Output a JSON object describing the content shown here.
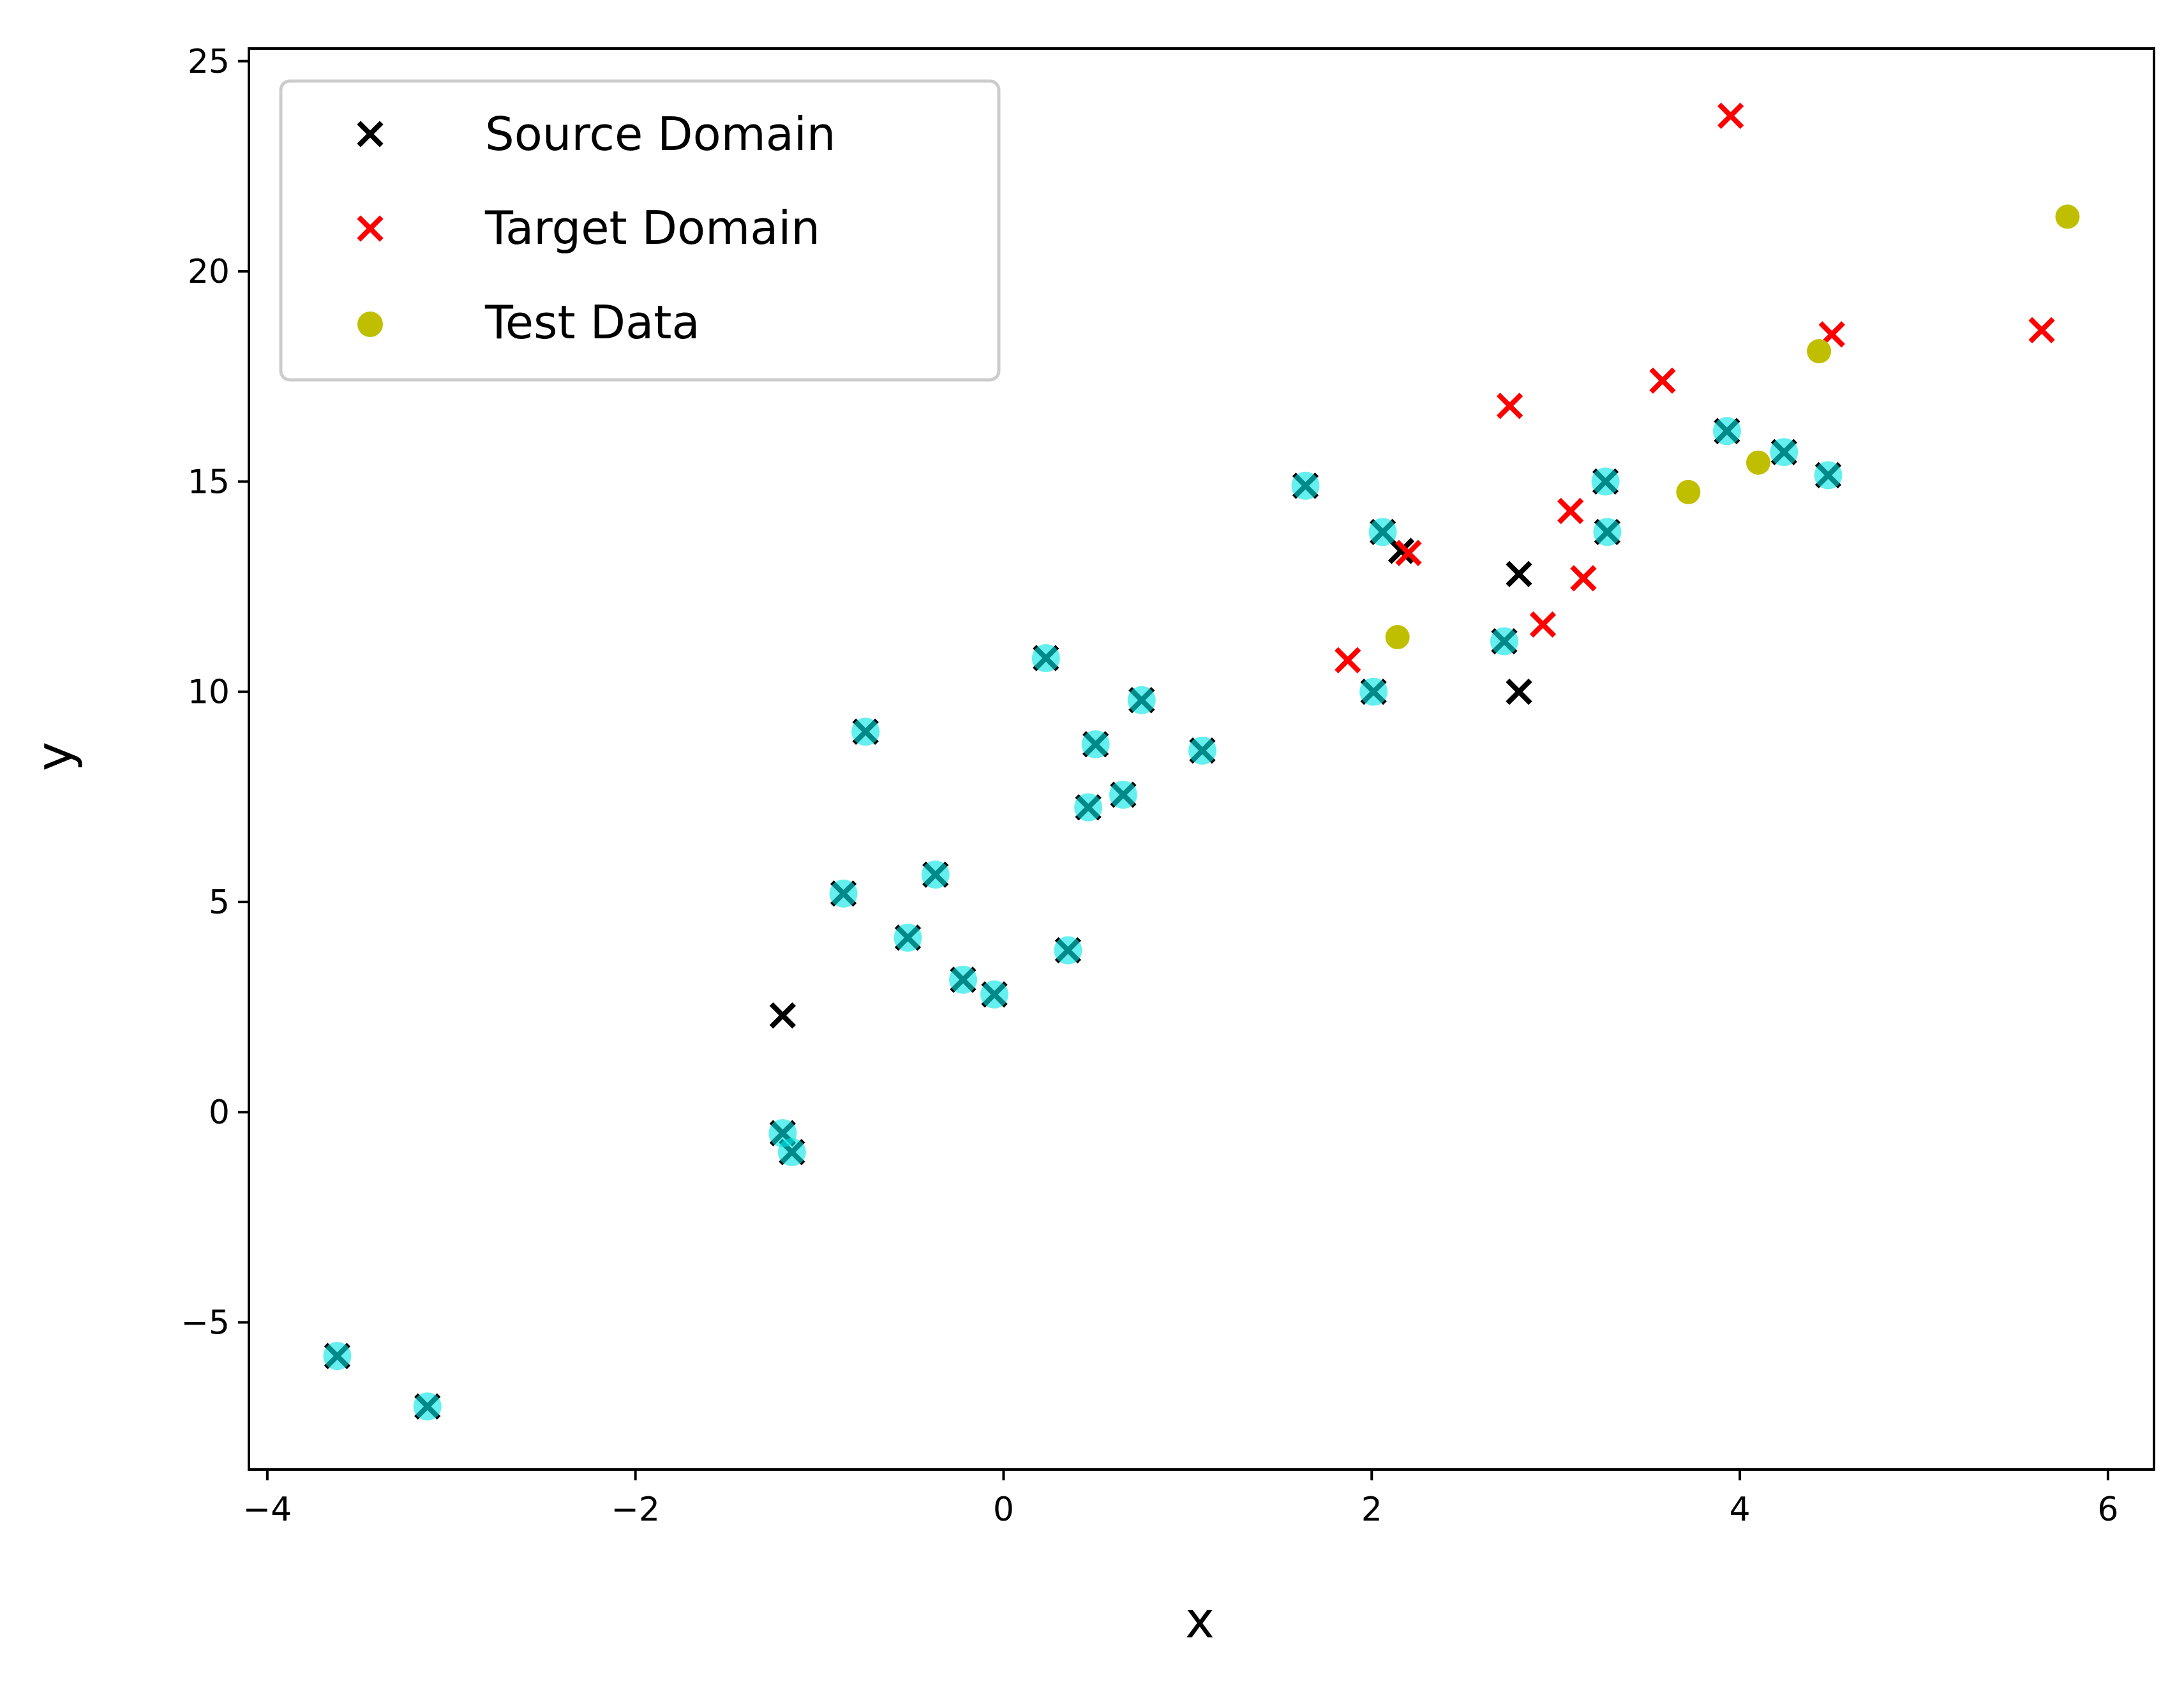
{
  "chart_data": {
    "type": "scatter",
    "xlabel": "x",
    "ylabel": "y",
    "xlim": [
      -4.1,
      6.25
    ],
    "ylim": [
      -8.5,
      25.3
    ],
    "xticks": [
      -4,
      -2,
      0,
      2,
      4,
      6
    ],
    "yticks": [
      -5,
      0,
      5,
      10,
      15,
      20,
      25
    ],
    "xtick_labels": [
      "−4",
      "−2",
      "0",
      "2",
      "4",
      "6"
    ],
    "ytick_labels": [
      "−5",
      "0",
      "5",
      "10",
      "15",
      "20",
      "25"
    ],
    "grid": false,
    "legend": {
      "placement": "top-left",
      "entries": [
        "Source Domain",
        "Target Domain",
        "Test Data"
      ]
    },
    "colors": {
      "source": "#000000",
      "target": "#ff0000",
      "test": "#bfbf00",
      "highlight": "#00e5e5"
    },
    "series": [
      {
        "name": "Source Domain",
        "marker": "x",
        "points": [
          [
            -3.62,
            -5.8
          ],
          [
            -3.13,
            -7.0
          ],
          [
            -1.2,
            2.3
          ],
          [
            -1.2,
            -0.5
          ],
          [
            -1.15,
            -0.95
          ],
          [
            -0.87,
            5.2
          ],
          [
            -0.75,
            9.05
          ],
          [
            -0.52,
            4.15
          ],
          [
            -0.37,
            5.65
          ],
          [
            -0.22,
            3.15
          ],
          [
            -0.05,
            2.8
          ],
          [
            0.23,
            10.8
          ],
          [
            0.35,
            3.85
          ],
          [
            0.46,
            7.25
          ],
          [
            0.5,
            8.75
          ],
          [
            0.65,
            7.55
          ],
          [
            0.75,
            9.8
          ],
          [
            1.08,
            8.6
          ],
          [
            1.64,
            14.9
          ],
          [
            2.01,
            10.0
          ],
          [
            2.06,
            13.8
          ],
          [
            2.16,
            13.35
          ],
          [
            2.72,
            11.2
          ],
          [
            2.8,
            10.0
          ],
          [
            2.8,
            12.8
          ],
          [
            3.27,
            15.0
          ],
          [
            3.28,
            13.8
          ],
          [
            3.93,
            16.2
          ],
          [
            4.24,
            15.7
          ],
          [
            4.48,
            15.15
          ]
        ]
      },
      {
        "name": "Target Domain",
        "marker": "x",
        "points": [
          [
            1.87,
            10.75
          ],
          [
            2.2,
            13.3
          ],
          [
            2.75,
            16.8
          ],
          [
            2.93,
            11.6
          ],
          [
            3.08,
            14.3
          ],
          [
            3.15,
            12.7
          ],
          [
            3.58,
            17.4
          ],
          [
            3.95,
            23.7
          ],
          [
            4.5,
            18.5
          ],
          [
            5.64,
            18.6
          ]
        ]
      },
      {
        "name": "Test Data",
        "marker": "o",
        "points": [
          [
            2.14,
            11.3
          ],
          [
            3.72,
            14.75
          ],
          [
            4.1,
            15.45
          ],
          [
            4.43,
            18.1
          ],
          [
            5.78,
            21.3
          ]
        ]
      }
    ],
    "highlighted_points": [
      [
        -3.62,
        -5.8
      ],
      [
        -3.13,
        -7.0
      ],
      [
        -1.2,
        -0.5
      ],
      [
        -1.15,
        -0.95
      ],
      [
        -0.87,
        5.2
      ],
      [
        -0.75,
        9.05
      ],
      [
        -0.52,
        4.15
      ],
      [
        -0.37,
        5.65
      ],
      [
        -0.22,
        3.15
      ],
      [
        -0.05,
        2.8
      ],
      [
        0.23,
        10.8
      ],
      [
        0.35,
        3.85
      ],
      [
        0.46,
        7.25
      ],
      [
        0.5,
        8.75
      ],
      [
        0.65,
        7.55
      ],
      [
        0.75,
        9.8
      ],
      [
        1.08,
        8.6
      ],
      [
        1.64,
        14.9
      ],
      [
        2.01,
        10.0
      ],
      [
        2.06,
        13.8
      ],
      [
        2.72,
        11.2
      ],
      [
        3.27,
        15.0
      ],
      [
        3.28,
        13.8
      ],
      [
        3.93,
        16.2
      ],
      [
        4.24,
        15.7
      ],
      [
        4.48,
        15.15
      ]
    ]
  }
}
